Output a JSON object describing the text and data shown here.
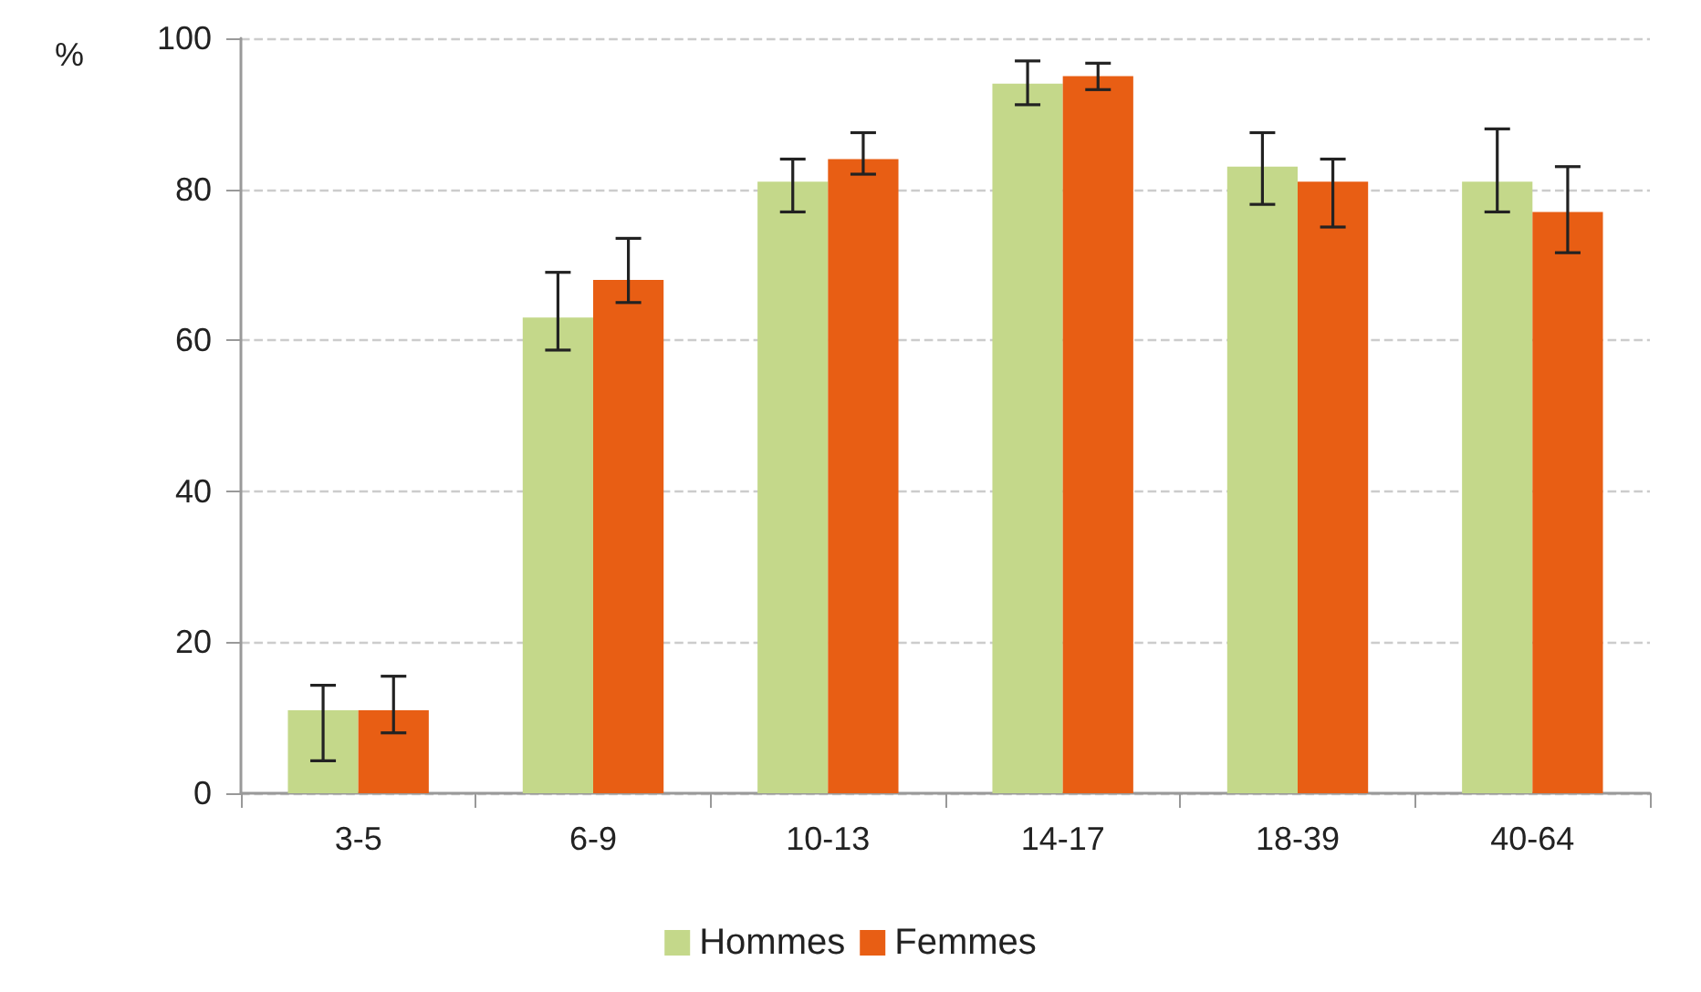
{
  "chart_data": {
    "type": "bar",
    "ylabel": "%",
    "categories": [
      "3-5",
      "6-9",
      "10-13",
      "14-17",
      "18-39",
      "40-64"
    ],
    "series": [
      {
        "name": "Hommes",
        "color": "#c4d88a",
        "values": [
          11,
          63,
          81,
          94,
          83,
          81
        ],
        "errors": [
          [
            4.3,
            14.3
          ],
          [
            58.7,
            69
          ],
          [
            77,
            84
          ],
          [
            91.2,
            97
          ],
          [
            78,
            87.5
          ],
          [
            77,
            88
          ]
        ]
      },
      {
        "name": "Femmes",
        "color": "#e85e14",
        "values": [
          11,
          68,
          84,
          95,
          81,
          77
        ],
        "errors": [
          [
            8,
            15.5
          ],
          [
            65,
            73.5
          ],
          [
            82,
            87.5
          ],
          [
            93.2,
            96.7
          ],
          [
            75,
            84
          ],
          [
            71.6,
            83
          ]
        ]
      }
    ],
    "ylim": [
      0,
      100
    ],
    "yticks": [
      0,
      20,
      40,
      60,
      80,
      100
    ],
    "grid": "y",
    "legend": "bottom"
  }
}
